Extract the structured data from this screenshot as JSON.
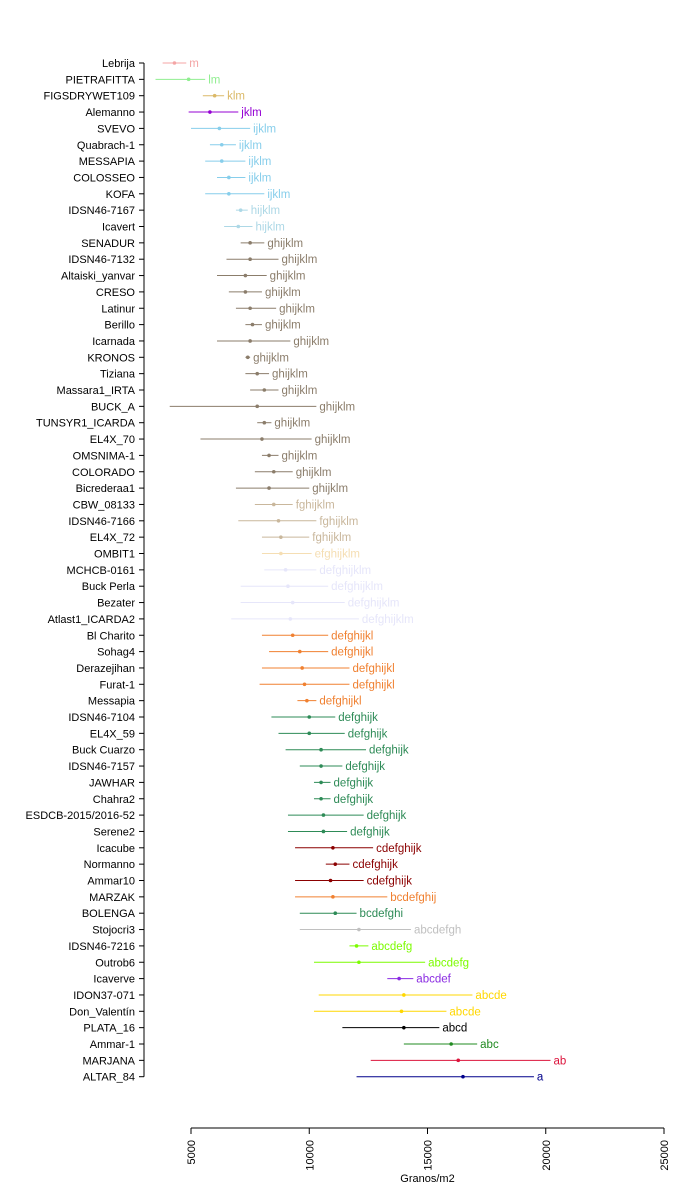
{
  "chart_data": {
    "type": "scatter",
    "xlabel": "Granos/m2",
    "xlim": [
      3000,
      25000
    ],
    "xticks": [
      5000,
      10000,
      15000,
      20000,
      25000
    ],
    "tick_labels": [
      "5000",
      "10000",
      "15000",
      "20000",
      "25000"
    ],
    "grid": false,
    "legend": "none",
    "orientation": "horizontal",
    "series": [
      {
        "label": "Lebrija",
        "mean": 4300,
        "low": 3800,
        "high": 4800,
        "group": "m",
        "color": "#f4a5a5"
      },
      {
        "label": "PIETRAFITTA",
        "mean": 4900,
        "low": 3500,
        "high": 5600,
        "group": "lm",
        "color": "#90ee90"
      },
      {
        "label": "FIGSDRYWET109",
        "mean": 6000,
        "low": 5500,
        "high": 6400,
        "group": "klm",
        "color": "#dbb968"
      },
      {
        "label": "Alemanno",
        "mean": 5800,
        "low": 4900,
        "high": 7000,
        "group": "jklm",
        "color": "#9400d3"
      },
      {
        "label": "SVEVO",
        "mean": 6200,
        "low": 5000,
        "high": 7500,
        "group": "ijklm",
        "color": "#87ceeb"
      },
      {
        "label": "Quabrach-1",
        "mean": 6300,
        "low": 5800,
        "high": 6900,
        "group": "ijklm",
        "color": "#87ceeb"
      },
      {
        "label": "MESSAPIA",
        "mean": 6300,
        "low": 5600,
        "high": 7300,
        "group": "ijklm",
        "color": "#87ceeb"
      },
      {
        "label": "COLOSSEO",
        "mean": 6600,
        "low": 6100,
        "high": 7300,
        "group": "ijklm",
        "color": "#87ceeb"
      },
      {
        "label": "KOFA",
        "mean": 6600,
        "low": 5600,
        "high": 8100,
        "group": "ijklm",
        "color": "#87ceeb"
      },
      {
        "label": "IDSN46-7167",
        "mean": 7100,
        "low": 6900,
        "high": 7400,
        "group": "hijklm",
        "color": "#add8e6"
      },
      {
        "label": "Icavert",
        "mean": 7000,
        "low": 6400,
        "high": 7600,
        "group": "hijklm",
        "color": "#add8e6"
      },
      {
        "label": "SENADUR",
        "mean": 7500,
        "low": 7100,
        "high": 8100,
        "group": "ghijklm",
        "color": "#8b7d6b"
      },
      {
        "label": "IDSN46-7132",
        "mean": 7500,
        "low": 6500,
        "high": 8700,
        "group": "ghijklm",
        "color": "#8b7d6b"
      },
      {
        "label": "Altaiski_yanvar",
        "mean": 7300,
        "low": 6100,
        "high": 8200,
        "group": "ghijklm",
        "color": "#8b7d6b"
      },
      {
        "label": "CRESO",
        "mean": 7300,
        "low": 6600,
        "high": 8000,
        "group": "ghijklm",
        "color": "#8b7d6b"
      },
      {
        "label": "Latinur",
        "mean": 7500,
        "low": 6900,
        "high": 8600,
        "group": "ghijklm",
        "color": "#8b7d6b"
      },
      {
        "label": "Berillo",
        "mean": 7600,
        "low": 7300,
        "high": 8000,
        "group": "ghijklm",
        "color": "#8b7d6b"
      },
      {
        "label": "Icarnada",
        "mean": 7500,
        "low": 6100,
        "high": 9200,
        "group": "ghijklm",
        "color": "#8b7d6b"
      },
      {
        "label": "KRONOS",
        "mean": 7400,
        "low": 7300,
        "high": 7500,
        "group": "ghijklm",
        "color": "#8b7d6b"
      },
      {
        "label": "Tiziana",
        "mean": 7800,
        "low": 7300,
        "high": 8300,
        "group": "ghijklm",
        "color": "#8b7d6b"
      },
      {
        "label": "Massara1_IRTA",
        "mean": 8100,
        "low": 7500,
        "high": 8700,
        "group": "ghijklm",
        "color": "#8b7d6b"
      },
      {
        "label": "BUCK_A",
        "mean": 7800,
        "low": 4100,
        "high": 10300,
        "group": "ghijklm",
        "color": "#8b7d6b"
      },
      {
        "label": "TUNSYR1_ICARDA",
        "mean": 8100,
        "low": 7800,
        "high": 8400,
        "group": "ghijklm",
        "color": "#8b7d6b"
      },
      {
        "label": "EL4X_70",
        "mean": 8000,
        "low": 5400,
        "high": 10100,
        "group": "ghijklm",
        "color": "#8b7d6b"
      },
      {
        "label": "OMSNIMA-1",
        "mean": 8300,
        "low": 8000,
        "high": 8700,
        "group": "ghijklm",
        "color": "#8b7d6b"
      },
      {
        "label": "COLORADO",
        "mean": 8500,
        "low": 7700,
        "high": 9300,
        "group": "ghijklm",
        "color": "#8b7d6b"
      },
      {
        "label": "Bicrederaa1",
        "mean": 8300,
        "low": 6900,
        "high": 10000,
        "group": "ghijklm",
        "color": "#8b7d6b"
      },
      {
        "label": "CBW_08133",
        "mean": 8500,
        "low": 7700,
        "high": 9300,
        "group": "fghijklm",
        "color": "#c9b79c"
      },
      {
        "label": "IDSN46-7166",
        "mean": 8700,
        "low": 7000,
        "high": 10300,
        "group": "fghijklm",
        "color": "#c9b79c"
      },
      {
        "label": "EL4X_72",
        "mean": 8800,
        "low": 8000,
        "high": 10000,
        "group": "fghijklm",
        "color": "#c9b79c"
      },
      {
        "label": "OMBIT1",
        "mean": 8800,
        "low": 8000,
        "high": 10100,
        "group": "efghijklm",
        "color": "#f5deb3"
      },
      {
        "label": "MCHCB-0161",
        "mean": 9000,
        "low": 8100,
        "high": 10300,
        "group": "defghijklm",
        "color": "#e6e6fa"
      },
      {
        "label": "Buck Perla",
        "mean": 9100,
        "low": 7100,
        "high": 10800,
        "group": "defghijklm",
        "color": "#e6e6fa"
      },
      {
        "label": "Bezater",
        "mean": 9300,
        "low": 7100,
        "high": 11500,
        "group": "defghijklm",
        "color": "#e6e6fa"
      },
      {
        "label": "Atlast1_ICARDA2",
        "mean": 9200,
        "low": 6700,
        "high": 12100,
        "group": "defghijklm",
        "color": "#e6e6fa"
      },
      {
        "label": "Bl Charito",
        "mean": 9300,
        "low": 8000,
        "high": 10800,
        "group": "defghijkl",
        "color": "#f08030"
      },
      {
        "label": "Sohag4",
        "mean": 9600,
        "low": 8300,
        "high": 10800,
        "group": "defghijkl",
        "color": "#f08030"
      },
      {
        "label": "Derazejihan",
        "mean": 9700,
        "low": 8000,
        "high": 11700,
        "group": "defghijkl",
        "color": "#f08030"
      },
      {
        "label": "Furat-1",
        "mean": 9800,
        "low": 7900,
        "high": 11700,
        "group": "defghijkl",
        "color": "#f08030"
      },
      {
        "label": "Messapia",
        "mean": 9900,
        "low": 9500,
        "high": 10300,
        "group": "defghijkl",
        "color": "#f08030"
      },
      {
        "label": "IDSN46-7104",
        "mean": 10000,
        "low": 8400,
        "high": 11100,
        "group": "defghijk",
        "color": "#2e8b57"
      },
      {
        "label": "EL4X_59",
        "mean": 10000,
        "low": 8700,
        "high": 11500,
        "group": "defghijk",
        "color": "#2e8b57"
      },
      {
        "label": "Buck Cuarzo",
        "mean": 10500,
        "low": 9000,
        "high": 12400,
        "group": "defghijk",
        "color": "#2e8b57"
      },
      {
        "label": "IDSN46-7157",
        "mean": 10500,
        "low": 9600,
        "high": 11400,
        "group": "defghijk",
        "color": "#2e8b57"
      },
      {
        "label": "JAWHAR",
        "mean": 10500,
        "low": 10200,
        "high": 10900,
        "group": "defghijk",
        "color": "#2e8b57"
      },
      {
        "label": "Chahra2",
        "mean": 10500,
        "low": 10200,
        "high": 10900,
        "group": "defghijk",
        "color": "#2e8b57"
      },
      {
        "label": "ESDCB-2015/2016-52",
        "mean": 10600,
        "low": 9100,
        "high": 12300,
        "group": "defghijk",
        "color": "#2e8b57"
      },
      {
        "label": "Serene2",
        "mean": 10600,
        "low": 9100,
        "high": 11600,
        "group": "defghijk",
        "color": "#2e8b57"
      },
      {
        "label": "Icacube",
        "mean": 11000,
        "low": 9400,
        "high": 12700,
        "group": "cdefghijk",
        "color": "#8b0000"
      },
      {
        "label": "Normanno",
        "mean": 11100,
        "low": 10700,
        "high": 11700,
        "group": "cdefghijk",
        "color": "#8b0000"
      },
      {
        "label": "Ammar10",
        "mean": 10900,
        "low": 9400,
        "high": 12300,
        "group": "cdefghijk",
        "color": "#8b0000"
      },
      {
        "label": "MARZAK",
        "mean": 11000,
        "low": 9400,
        "high": 13300,
        "group": "bcdefghij",
        "color": "#f08030"
      },
      {
        "label": "BOLENGA",
        "mean": 11100,
        "low": 9600,
        "high": 12000,
        "group": "bcdefghi",
        "color": "#2e8b57"
      },
      {
        "label": "Stojocri3",
        "mean": 12100,
        "low": 9600,
        "high": 14300,
        "group": "abcdefgh",
        "color": "#c0c0c0"
      },
      {
        "label": "IDSN46-7216",
        "mean": 12000,
        "low": 11700,
        "high": 12500,
        "group": "abcdefg",
        "color": "#7cfc00"
      },
      {
        "label": "Outrob6",
        "mean": 12100,
        "low": 10200,
        "high": 14900,
        "group": "abcdefg",
        "color": "#7cfc00"
      },
      {
        "label": "Icaverve",
        "mean": 13800,
        "low": 13300,
        "high": 14400,
        "group": "abcdef",
        "color": "#8a2be2"
      },
      {
        "label": "IDON37-071",
        "mean": 14000,
        "low": 10400,
        "high": 16900,
        "group": "abcde",
        "color": "#ffd700"
      },
      {
        "label": "Don_Valentín",
        "mean": 13900,
        "low": 10200,
        "high": 15800,
        "group": "abcde",
        "color": "#ffd700"
      },
      {
        "label": "PLATA_16",
        "mean": 14000,
        "low": 11400,
        "high": 15500,
        "group": "abcd",
        "color": "#000000"
      },
      {
        "label": "Ammar-1",
        "mean": 16000,
        "low": 14000,
        "high": 17100,
        "group": "abc",
        "color": "#228b22"
      },
      {
        "label": "MARJANA",
        "mean": 16300,
        "low": 12600,
        "high": 20200,
        "group": "ab",
        "color": "#dc143c"
      },
      {
        "label": "ALTAR_84",
        "mean": 16500,
        "low": 12000,
        "high": 19500,
        "group": "a",
        "color": "#00008b"
      }
    ]
  }
}
